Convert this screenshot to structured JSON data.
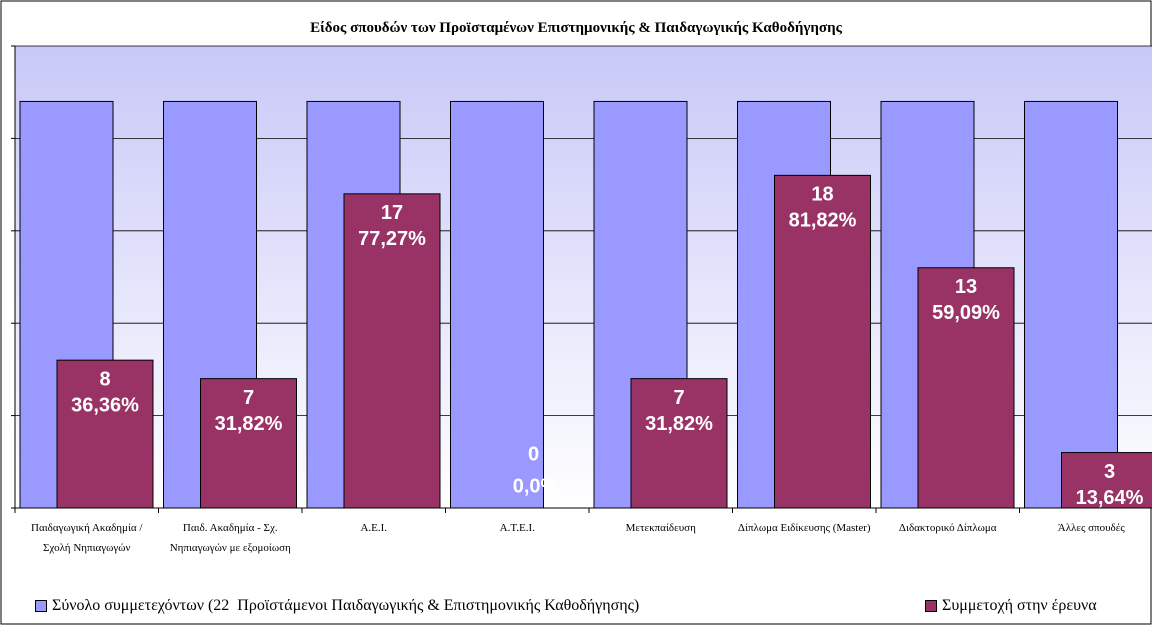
{
  "chart_data": {
    "type": "bar",
    "title": "Είδος σπουδών των Προϊσταμένων Επιστημονικής & Παιδαγωγικής Καθοδήγησης",
    "categories": [
      "Παιδαγωγική Ακαδημία / Σχολή Νηπιαγωγών",
      "Παιδ. Ακαδημία - Σχ. Νηπιαγωγών με εξομοίωση",
      "Α.Ε.Ι.",
      "Α.Τ.Ε.Ι.",
      "Μετεκπαίδευση",
      "Δίπλωμα Ειδίκευσης (Master)",
      "Διδακτορικό Δίπλωμα",
      "Άλλες σπουδές"
    ],
    "series": [
      {
        "name": "Σύνολο συμμετεχόντων (22  Προϊστάμενοι Παιδαγωγικής & Επιστημονικής Καθοδήγησης)",
        "color": "#9999ff",
        "values": [
          22,
          22,
          22,
          22,
          22,
          22,
          22,
          22
        ]
      },
      {
        "name": "Συμμετοχή στην έρευνα",
        "color": "#993366",
        "values": [
          8,
          7,
          17,
          0,
          7,
          18,
          13,
          3
        ],
        "percent_labels": [
          "36,36%",
          "31,82%",
          "77,27%",
          "0,0%",
          "31,82%",
          "81,82%",
          "59,09%",
          "13,64%"
        ]
      }
    ],
    "ylim": [
      0,
      25
    ],
    "yticks": [
      0,
      5,
      10,
      15,
      20,
      25
    ],
    "grid": true,
    "legend": "bottom"
  }
}
